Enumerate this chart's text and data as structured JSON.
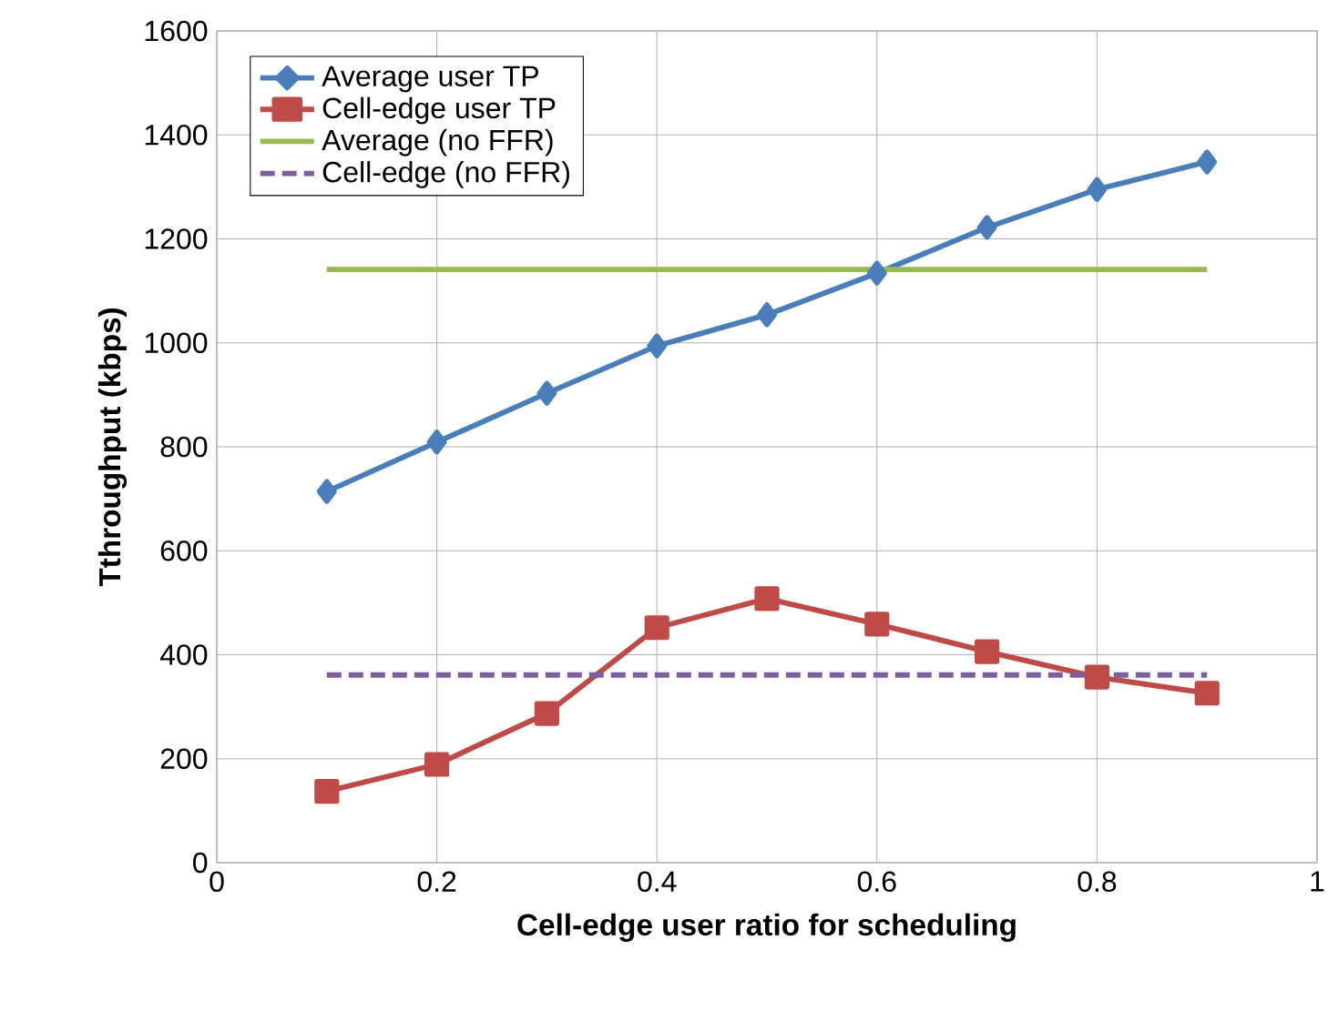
{
  "chart_data": {
    "type": "line",
    "xlabel": "Cell-edge user ratio for scheduling",
    "ylabel": "Tthroughput (kbps)",
    "x": [
      0.1,
      0.2,
      0.3,
      0.4,
      0.5,
      0.6,
      0.7,
      0.8,
      0.9
    ],
    "series": [
      {
        "name": "Average user TP",
        "color": "#4a7ebb",
        "marker": "diamond",
        "line_style": "solid",
        "values": [
          714,
          809,
          903,
          994,
          1054,
          1134,
          1222,
          1295,
          1348
        ]
      },
      {
        "name": "Cell-edge user TP",
        "color": "#be4b48",
        "marker": "square",
        "line_style": "solid",
        "values": [
          137,
          189,
          287,
          452,
          508,
          459,
          406,
          357,
          326
        ]
      },
      {
        "name": "Average (no FFR)",
        "color": "#98b954",
        "marker": "none",
        "line_style": "solid",
        "values": [
          1141,
          1141,
          1141,
          1141,
          1141,
          1141,
          1141,
          1141,
          1141
        ]
      },
      {
        "name": "Cell-edge (no FFR)",
        "color": "#7d5fa0",
        "marker": "none",
        "line_style": "dashed",
        "values": [
          361,
          361,
          361,
          361,
          361,
          361,
          361,
          361,
          361
        ]
      }
    ],
    "xlim": [
      0,
      1
    ],
    "ylim": [
      0,
      1600
    ],
    "xticks": [
      0,
      0.2,
      0.4,
      0.6,
      0.8,
      1
    ],
    "yticks": [
      0,
      200,
      400,
      600,
      800,
      1000,
      1200,
      1400,
      1600
    ],
    "grid": true,
    "legend": "top left"
  }
}
